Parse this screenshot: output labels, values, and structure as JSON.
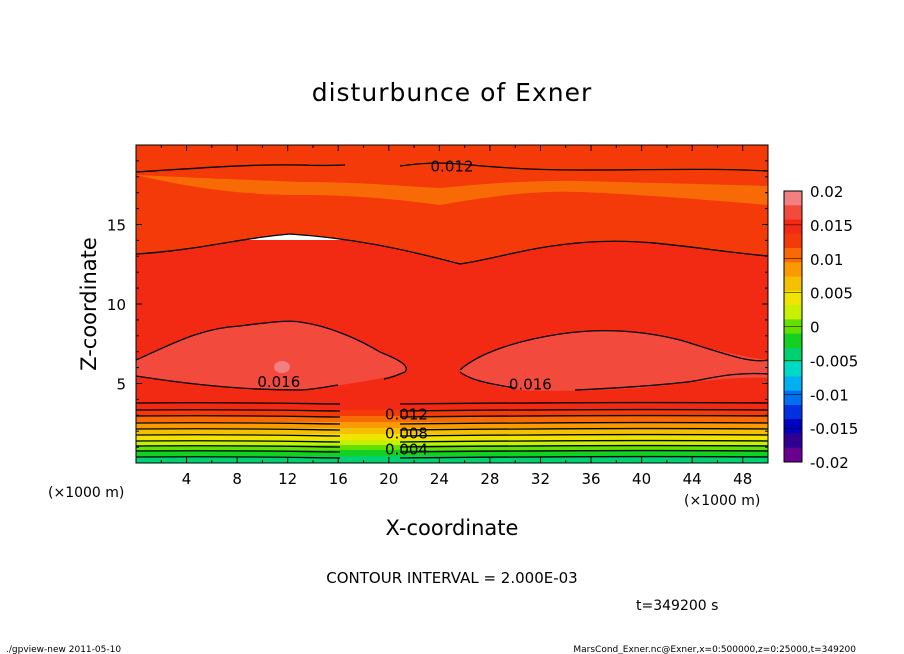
{
  "chart_data": {
    "type": "contour",
    "title": "disturbunce of Exner",
    "xlabel": "X-coordinate",
    "ylabel": "Z-coordinate",
    "x_unit_left": "(×1000 m)",
    "x_unit_right": "(×1000 m)",
    "xlim": [
      0,
      50
    ],
    "ylim": [
      0,
      20
    ],
    "x_ticks": [
      4,
      8,
      12,
      16,
      20,
      24,
      28,
      32,
      36,
      40,
      44,
      48
    ],
    "x_tick_labels": [
      "4",
      "8",
      "12",
      "16",
      "20",
      "24",
      "28",
      "32",
      "36",
      "40",
      "44",
      "48"
    ],
    "y_ticks": [
      5,
      10,
      15
    ],
    "y_tick_labels": [
      "5",
      "10",
      "15"
    ],
    "contour_interval_text": "CONTOUR INTERVAL = 2.000E-03",
    "time_text": "t=349200 s",
    "footer_left": "./gpview-new  2011-05-10",
    "footer_right": "MarsCond_Exner.nc@Exner,x=0:500000,z=0:25000,t=349200",
    "colorbar": {
      "min": -0.02,
      "max": 0.02,
      "tick_labels": [
        "0.02",
        "0.015",
        "0.01",
        "0.005",
        "0",
        "-0.005",
        "-0.01",
        "-0.015",
        "-0.02"
      ],
      "tick_values": [
        0.02,
        0.015,
        0.01,
        0.005,
        0,
        -0.005,
        -0.01,
        -0.015,
        -0.02
      ],
      "colors": [
        "#f28080",
        "#f24a3c",
        "#f22a14",
        "#f53a0a",
        "#f86a05",
        "#fa9a00",
        "#f5c000",
        "#f0e400",
        "#c8f000",
        "#64e000",
        "#14d020",
        "#00d070",
        "#00d8c8",
        "#00b0f0",
        "#0070f0",
        "#0030e0",
        "#0000c0",
        "#300090",
        "#6a0090"
      ]
    },
    "contour_labels": [
      {
        "text": "0.012",
        "x": 25,
        "y": 18.65
      },
      {
        "text": "0.016",
        "x": 11.3,
        "y": 5.1
      },
      {
        "text": "0.016",
        "x": 31.2,
        "y": 4.95
      },
      {
        "text": "0.012",
        "x": 21.4,
        "y": 3.05
      },
      {
        "text": "0.008",
        "x": 21.4,
        "y": 1.85
      },
      {
        "text": "0.004",
        "x": 21.4,
        "y": 0.85
      }
    ]
  }
}
